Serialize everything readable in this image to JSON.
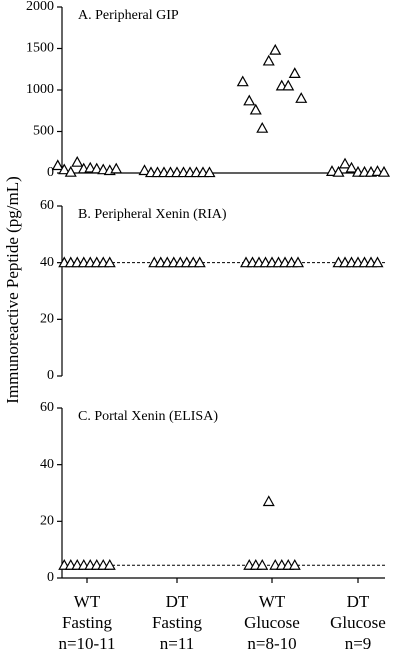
{
  "chart_data": [
    {
      "type": "scatter",
      "title": "A. Peripheral GIP",
      "ylim": [
        0,
        2000
      ],
      "yticks": [
        0,
        500,
        1000,
        1500,
        2000
      ],
      "values": [
        [
          90,
          40,
          10,
          130,
          50,
          60,
          50,
          40,
          30,
          50
        ],
        [
          30,
          5,
          5,
          5,
          5,
          5,
          5,
          5,
          5,
          5,
          5
        ],
        [
          1100,
          870,
          760,
          540,
          1350,
          1480,
          1050,
          1050,
          1200,
          900
        ],
        [
          20,
          10,
          110,
          60,
          10,
          10,
          10,
          20,
          10
        ]
      ]
    },
    {
      "type": "scatter",
      "title": "B. Peripheral Xenin (RIA)",
      "ylabel": "Immunoreactive Peptide (pg/mL)",
      "ylim": [
        0,
        60
      ],
      "yticks": [
        0,
        20,
        40,
        60
      ],
      "reference_line": 40,
      "values": [
        [
          40,
          40,
          40,
          40,
          40,
          40,
          40,
          40
        ],
        [
          40,
          40,
          40,
          40,
          40,
          40,
          40,
          40
        ],
        [
          40,
          40,
          40,
          40,
          40,
          40,
          40,
          40,
          40
        ],
        [
          40,
          40,
          40,
          40,
          40,
          40,
          40
        ]
      ]
    },
    {
      "type": "scatter",
      "title": "C. Portal Xenin (ELISA)",
      "ylim": [
        0,
        60
      ],
      "yticks": [
        0,
        20,
        40,
        60
      ],
      "reference_line": 4.5,
      "categories": [
        [
          "WT",
          "Fasting",
          "n=10-11"
        ],
        [
          "DT",
          "Fasting",
          "n=11"
        ],
        [
          "WT",
          "Glucose",
          "n=8-10"
        ],
        [
          "DT",
          "Glucose",
          "n=9"
        ]
      ],
      "values": [
        [
          4.5,
          4.5,
          4.5,
          4.5,
          4.5,
          4.5,
          4.5,
          4.5
        ],
        [],
        [
          4.5,
          4.5,
          4.5,
          27,
          4.5,
          4.5,
          4.5,
          4.5
        ],
        []
      ]
    }
  ]
}
